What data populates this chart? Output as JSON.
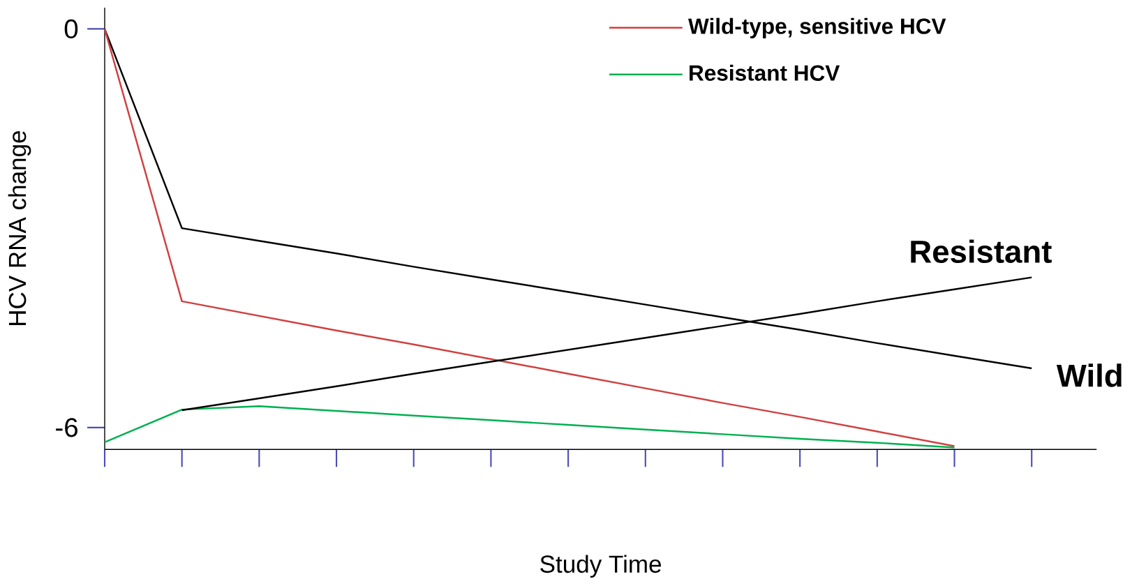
{
  "chart_data": {
    "type": "line",
    "xlabel": "Study Time",
    "ylabel": "HCV RNA change",
    "categories": [
      null,
      null,
      null,
      null,
      null,
      null,
      null,
      null,
      null,
      null,
      null,
      null,
      null
    ],
    "ylim": [
      -6.33,
      0.32
    ],
    "yticks": [
      0,
      -6
    ],
    "series": [
      {
        "color": "#000000",
        "values": [
          0,
          -3.0,
          -3.19,
          -3.38,
          -3.58,
          -3.77,
          -3.96,
          -4.15,
          -4.34,
          -4.53,
          -4.73,
          -4.92,
          -5.11
        ]
      },
      {
        "name": "Wild-type, sensitive HCV",
        "color": "#d04040",
        "values": [
          0,
          -4.1,
          -4.32,
          -4.54,
          -4.75,
          -4.97,
          -5.19,
          -5.41,
          -5.63,
          -5.84,
          -6.06,
          -6.28,
          null
        ]
      },
      {
        "name": "Resistant HCV",
        "color": "#00b050",
        "values": [
          -6.22,
          -5.73,
          -5.68,
          -5.75,
          -5.82,
          -5.89,
          -5.96,
          -6.03,
          -6.1,
          -6.17,
          -6.23,
          -6.3,
          null
        ]
      },
      {
        "color": "#000000",
        "values": [
          null,
          -5.74,
          -5.56,
          -5.38,
          -5.19,
          -5.01,
          -4.83,
          -4.65,
          -4.47,
          -4.29,
          -4.1,
          -3.92,
          -3.74
        ]
      }
    ],
    "annotations": [
      "Resistant",
      "Wild"
    ],
    "legend": "top right"
  }
}
